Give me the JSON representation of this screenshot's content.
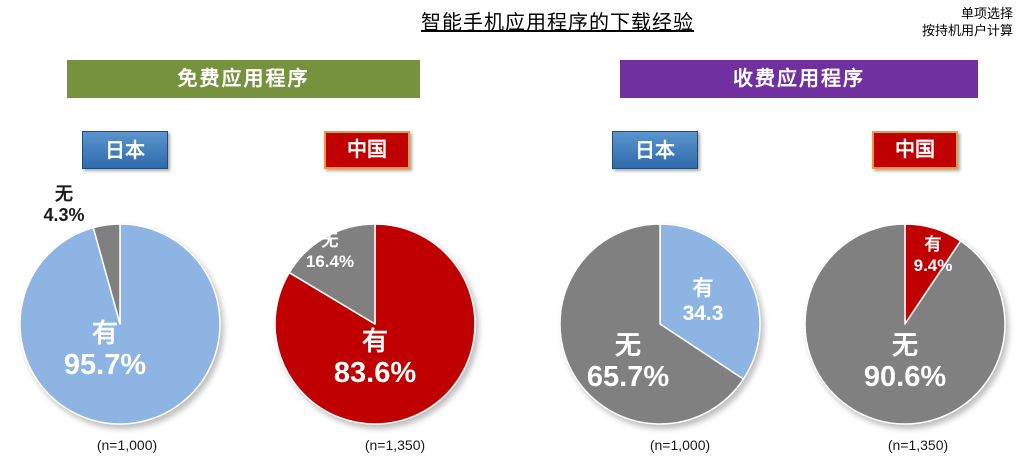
{
  "title": "智能手机应用程序的下载经验",
  "notes": {
    "line1": "单项选择",
    "line2": "按持机用户计算"
  },
  "section_headers": [
    {
      "label": "免费应用程序",
      "bg": "#76923C"
    },
    {
      "label": "收费应用程序",
      "bg": "#7030A0"
    }
  ],
  "country_tags": [
    {
      "label": "日本",
      "style": "japan"
    },
    {
      "label": "中国",
      "style": "china"
    },
    {
      "label": "日本",
      "style": "japan"
    },
    {
      "label": "中国",
      "style": "china"
    }
  ],
  "colors": {
    "japan_slice_blue": "#8DB4E2",
    "china_slice_red": "#C00000",
    "no_slice_gray": "#808080",
    "free_header_bg": "#76923C",
    "paid_header_bg": "#7030A0",
    "japan_tag_bg": "#2E6BAD",
    "japan_tag_border": "#1F4E79",
    "china_tag_bg": "#C00000",
    "china_tag_border": "#E89A3C",
    "label_white": "#FFFFFF",
    "label_black": "#1a1a1a"
  },
  "chart_data": [
    {
      "type": "pie",
      "group": "免费应用程序",
      "country": "日本",
      "n_label": "(n=1,000)",
      "start_angle_deg": 0,
      "direction": "clockwise",
      "slices": [
        {
          "label": "有",
          "value": 95.7,
          "display": "95.7%",
          "color": "#8DB4E2",
          "label_position": "inside"
        },
        {
          "label": "无",
          "value": 4.3,
          "display": "4.3%",
          "color": "#808080",
          "label_position": "outside-top-left"
        }
      ]
    },
    {
      "type": "pie",
      "group": "免费应用程序",
      "country": "中国",
      "n_label": "(n=1,350)",
      "start_angle_deg": 0,
      "direction": "clockwise",
      "slices": [
        {
          "label": "有",
          "value": 83.6,
          "display": "83.6%",
          "color": "#C00000",
          "label_position": "inside"
        },
        {
          "label": "无",
          "value": 16.4,
          "display": "16.4%",
          "color": "#808080",
          "label_position": "inside"
        }
      ]
    },
    {
      "type": "pie",
      "group": "收费应用程序",
      "country": "日本",
      "n_label": "(n=1,000)",
      "start_angle_deg": 0,
      "direction": "clockwise",
      "slices": [
        {
          "label": "有",
          "value": 34.3,
          "display": "34.3",
          "color": "#8DB4E2",
          "label_position": "inside"
        },
        {
          "label": "无",
          "value": 65.7,
          "display": "65.7%",
          "color": "#808080",
          "label_position": "inside"
        }
      ]
    },
    {
      "type": "pie",
      "group": "收费应用程序",
      "country": "中国",
      "n_label": "(n=1,350)",
      "start_angle_deg": 0,
      "direction": "clockwise",
      "slices": [
        {
          "label": "有",
          "value": 9.4,
          "display": "9.4%",
          "color": "#C00000",
          "label_position": "inside"
        },
        {
          "label": "无",
          "value": 90.6,
          "display": "90.6%",
          "color": "#808080",
          "label_position": "inside"
        }
      ]
    }
  ]
}
